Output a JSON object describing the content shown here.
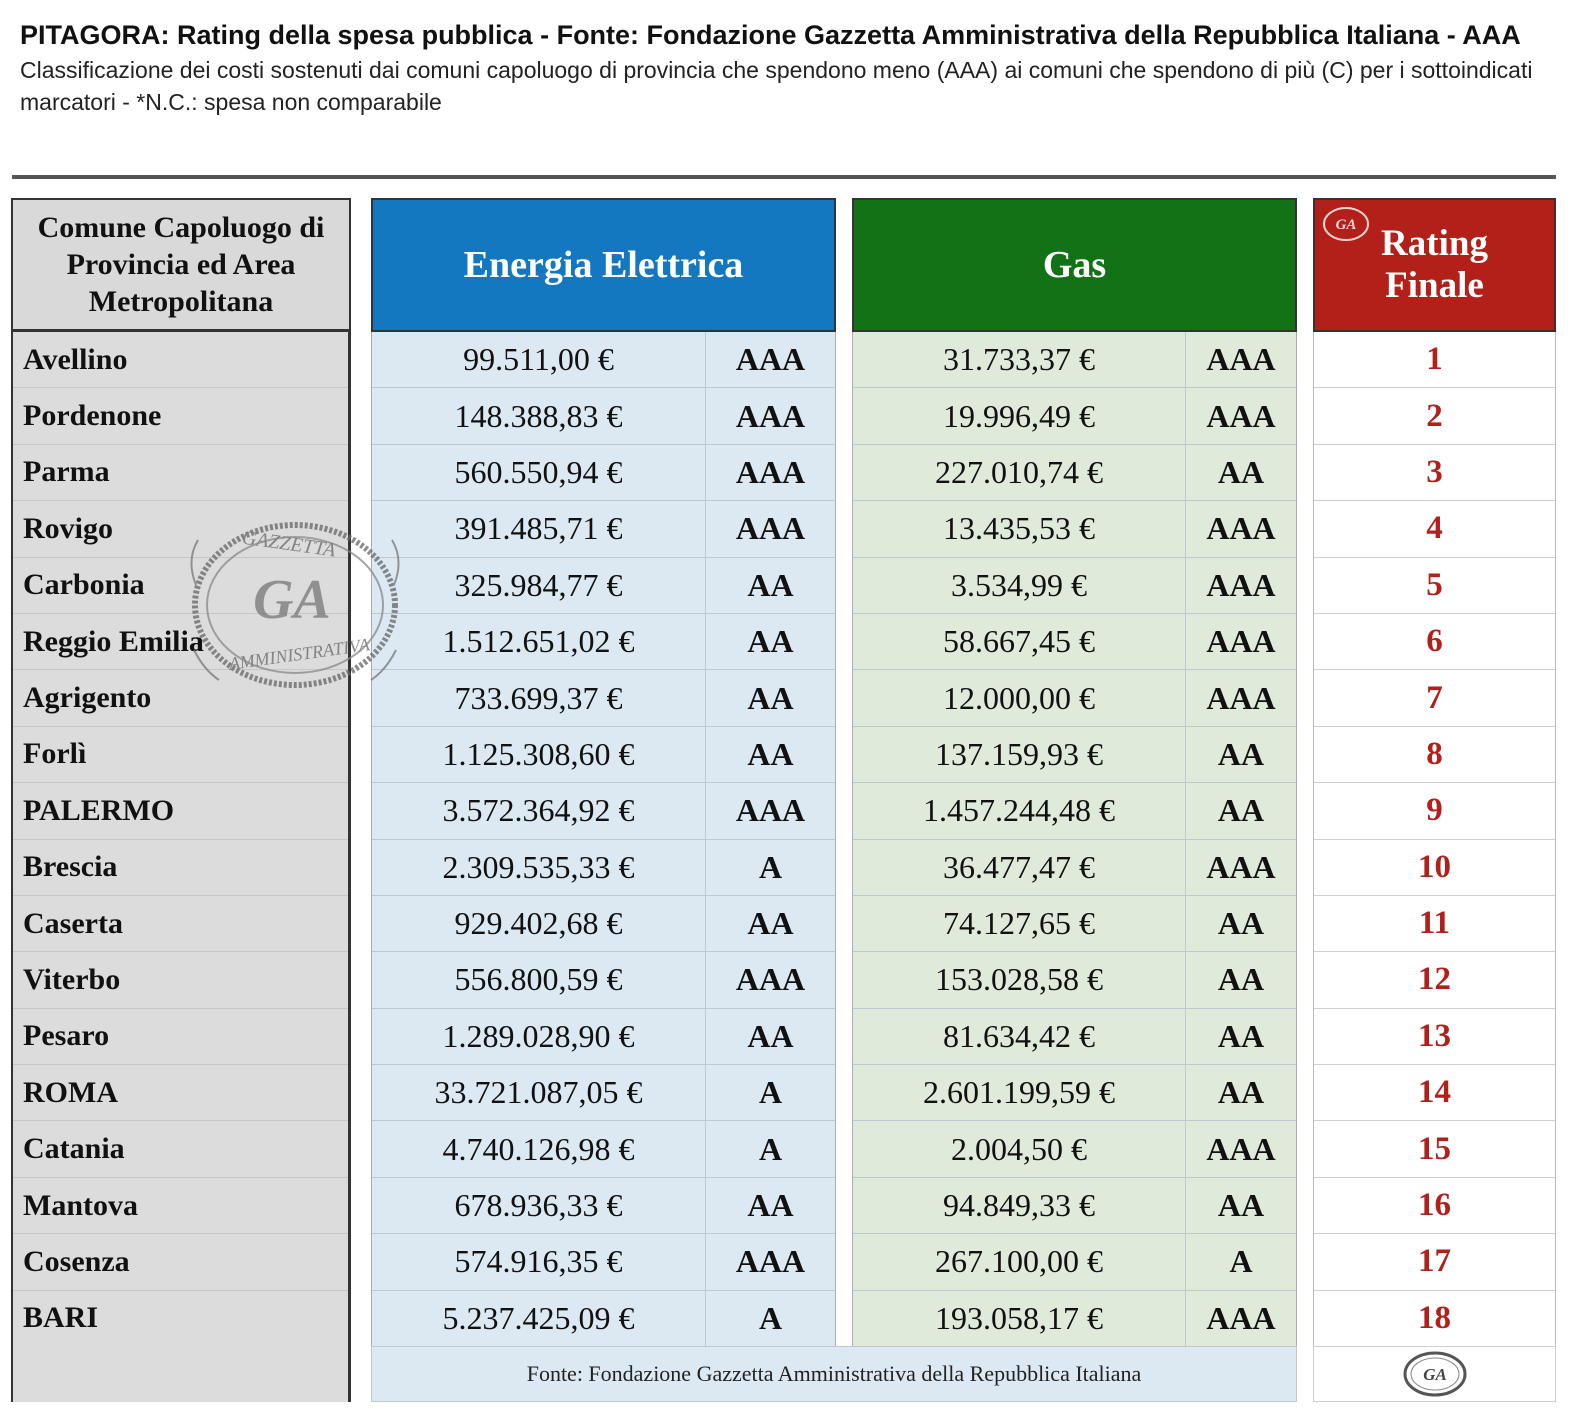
{
  "header": {
    "title": "PITAGORA: Rating della spesa pubblica - Fonte: Fondazione Gazzetta Amministrativa della Repubblica Italiana - AAA",
    "subtitle": "Classificazione dei costi sostenuti dai comuni capoluogo di provincia che spendono meno (AAA) ai comuni che spendono di più (C) per i sottoindicati marcatori - *N.C.: spesa non comparabile"
  },
  "columns": {
    "comune": "Comune Capoluogo di Provincia ed Area Metropolitana",
    "energia": "Energia Elettrica",
    "gas": "Gas",
    "rating": "Rating Finale"
  },
  "rows": [
    {
      "comune": "Avellino",
      "energia": "99.511,00 €",
      "energia_rating": "AAA",
      "gas": "31.733,37 €",
      "gas_rating": "AAA",
      "rank": "1"
    },
    {
      "comune": "Pordenone",
      "energia": "148.388,83 €",
      "energia_rating": "AAA",
      "gas": "19.996,49 €",
      "gas_rating": "AAA",
      "rank": "2"
    },
    {
      "comune": "Parma",
      "energia": "560.550,94 €",
      "energia_rating": "AAA",
      "gas": "227.010,74 €",
      "gas_rating": "AA",
      "rank": "3"
    },
    {
      "comune": "Rovigo",
      "energia": "391.485,71 €",
      "energia_rating": "AAA",
      "gas": "13.435,53 €",
      "gas_rating": "AAA",
      "rank": "4"
    },
    {
      "comune": "Carbonia",
      "energia": "325.984,77 €",
      "energia_rating": "AA",
      "gas": "3.534,99 €",
      "gas_rating": "AAA",
      "rank": "5"
    },
    {
      "comune": "Reggio Emilia",
      "energia": "1.512.651,02 €",
      "energia_rating": "AA",
      "gas": "58.667,45 €",
      "gas_rating": "AAA",
      "rank": "6"
    },
    {
      "comune": "Agrigento",
      "energia": "733.699,37 €",
      "energia_rating": "AA",
      "gas": "12.000,00 €",
      "gas_rating": "AAA",
      "rank": "7"
    },
    {
      "comune": "Forlì",
      "energia": "1.125.308,60 €",
      "energia_rating": "AA",
      "gas": "137.159,93 €",
      "gas_rating": "AA",
      "rank": "8"
    },
    {
      "comune": "PALERMO",
      "energia": "3.572.364,92 €",
      "energia_rating": "AAA",
      "gas": "1.457.244,48 €",
      "gas_rating": "AA",
      "rank": "9"
    },
    {
      "comune": "Brescia",
      "energia": "2.309.535,33 €",
      "energia_rating": "A",
      "gas": "36.477,47 €",
      "gas_rating": "AAA",
      "rank": "10"
    },
    {
      "comune": "Caserta",
      "energia": "929.402,68 €",
      "energia_rating": "AA",
      "gas": "74.127,65 €",
      "gas_rating": "AA",
      "rank": "11"
    },
    {
      "comune": "Viterbo",
      "energia": "556.800,59 €",
      "energia_rating": "AAA",
      "gas": "153.028,58 €",
      "gas_rating": "AA",
      "rank": "12"
    },
    {
      "comune": "Pesaro",
      "energia": "1.289.028,90 €",
      "energia_rating": "AA",
      "gas": "81.634,42 €",
      "gas_rating": "AA",
      "rank": "13"
    },
    {
      "comune": "ROMA",
      "energia": "33.721.087,05 €",
      "energia_rating": "A",
      "gas": "2.601.199,59 €",
      "gas_rating": "AA",
      "rank": "14"
    },
    {
      "comune": "Catania",
      "energia": "4.740.126,98 €",
      "energia_rating": "A",
      "gas": "2.004,50 €",
      "gas_rating": "AAA",
      "rank": "15"
    },
    {
      "comune": "Mantova",
      "energia": "678.936,33 €",
      "energia_rating": "AA",
      "gas": "94.849,33 €",
      "gas_rating": "AA",
      "rank": "16"
    },
    {
      "comune": "Cosenza",
      "energia": "574.916,35 €",
      "energia_rating": "AAA",
      "gas": "267.100,00 €",
      "gas_rating": "A",
      "rank": "17"
    },
    {
      "comune": "BARI",
      "energia": "5.237.425,09 €",
      "energia_rating": "A",
      "gas": "193.058,17 €",
      "gas_rating": "AAA",
      "rank": "18"
    }
  ],
  "footer": {
    "source": "Fonte: Fondazione Gazzetta Amministrativa della Repubblica Italiana"
  },
  "watermark": {
    "text_top": "GAZZETTA",
    "text_mid": "GA",
    "text_bottom": "AMMINISTRATIVA"
  },
  "colors": {
    "energia_header": "#1378bf",
    "gas_header": "#127316",
    "rating_header": "#b22019",
    "rank_text": "#b2201b"
  }
}
